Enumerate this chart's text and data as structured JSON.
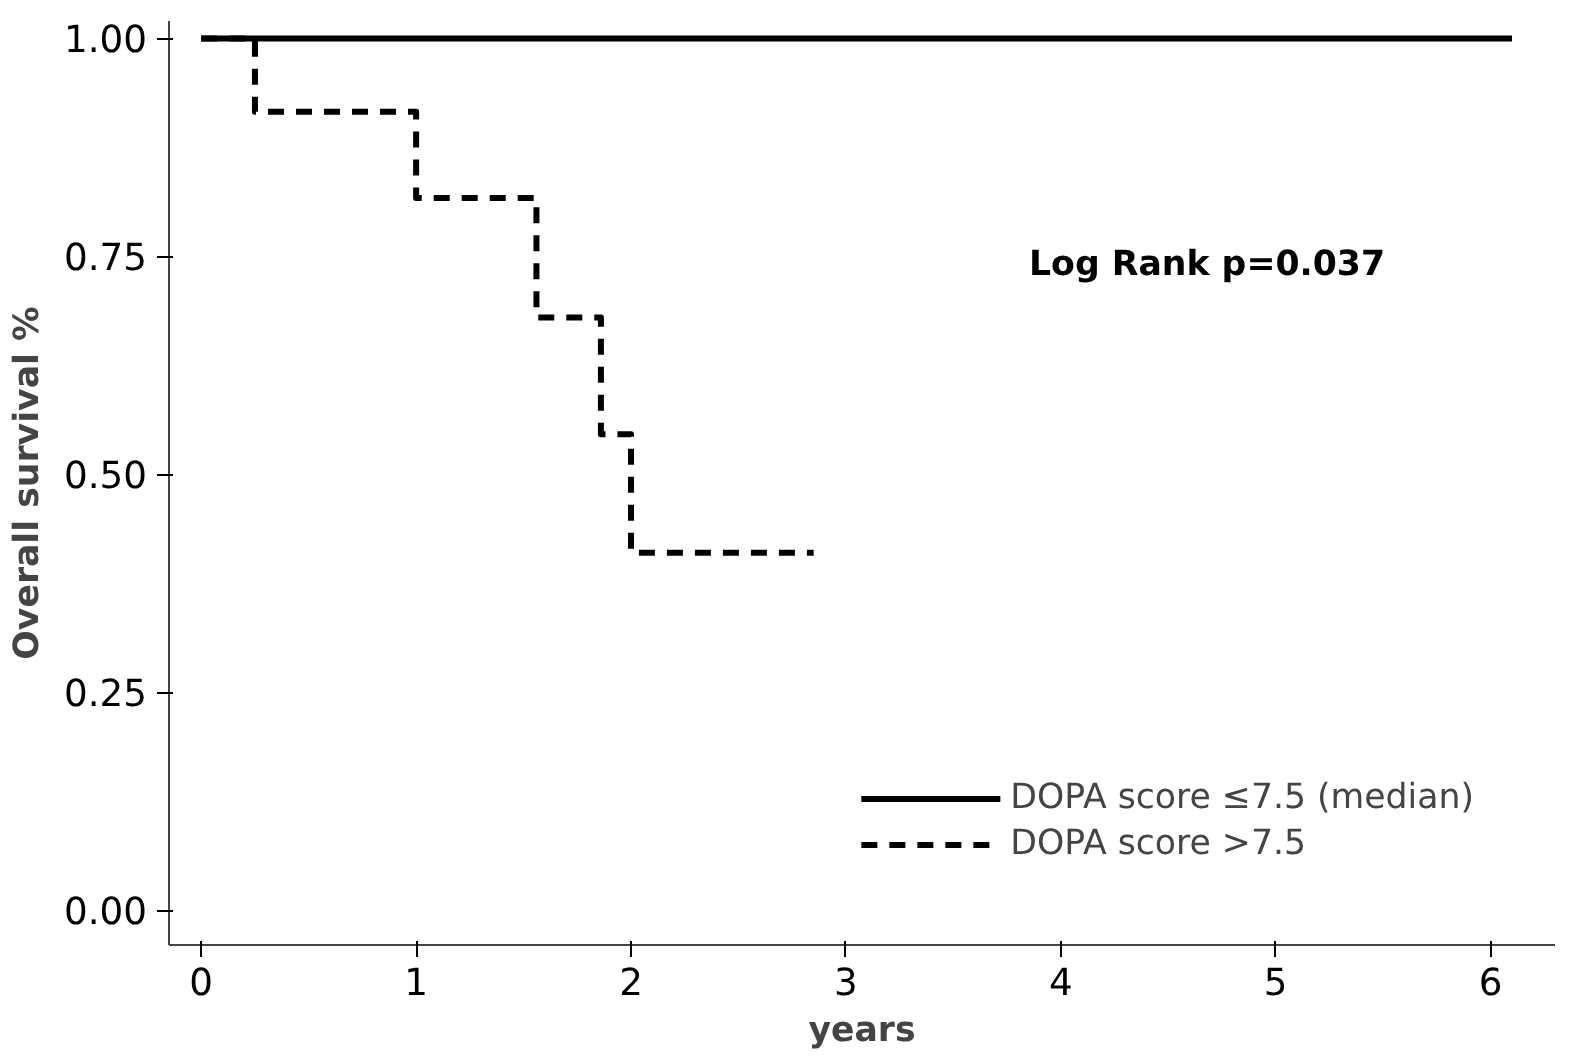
{
  "chart_data": {
    "type": "step",
    "xlabel": "years",
    "ylabel": "Overall survival %",
    "xlim": [
      -0.15,
      6.3
    ],
    "ylim": [
      -0.04,
      1.02
    ],
    "xticks": [
      0,
      1,
      2,
      3,
      4,
      5,
      6
    ],
    "yticks": [
      {
        "value": 0,
        "label": "0.00"
      },
      {
        "value": 0.25,
        "label": "0.25"
      },
      {
        "value": 0.5,
        "label": "0.50"
      },
      {
        "value": 0.75,
        "label": "0.75"
      },
      {
        "value": 1,
        "label": "1.00"
      }
    ],
    "series": [
      {
        "name": "DOPA score ≤7.5 (median)",
        "color": "#000000",
        "line_style": "solid",
        "x": [
          0,
          6.1
        ],
        "values": [
          1.0,
          1.0
        ]
      },
      {
        "name": "DOPA score >7.5",
        "color": "#000000",
        "line_style": "dashed",
        "x": [
          0,
          0.25,
          1.0,
          1.56,
          1.86,
          2.0,
          2.85
        ],
        "values": [
          1.0,
          0.916,
          0.817,
          0.68,
          0.546,
          0.41,
          0.41
        ]
      }
    ],
    "annotations": [
      "Log Rank p=0.037"
    ],
    "legend": "bottom right",
    "grid": false
  }
}
